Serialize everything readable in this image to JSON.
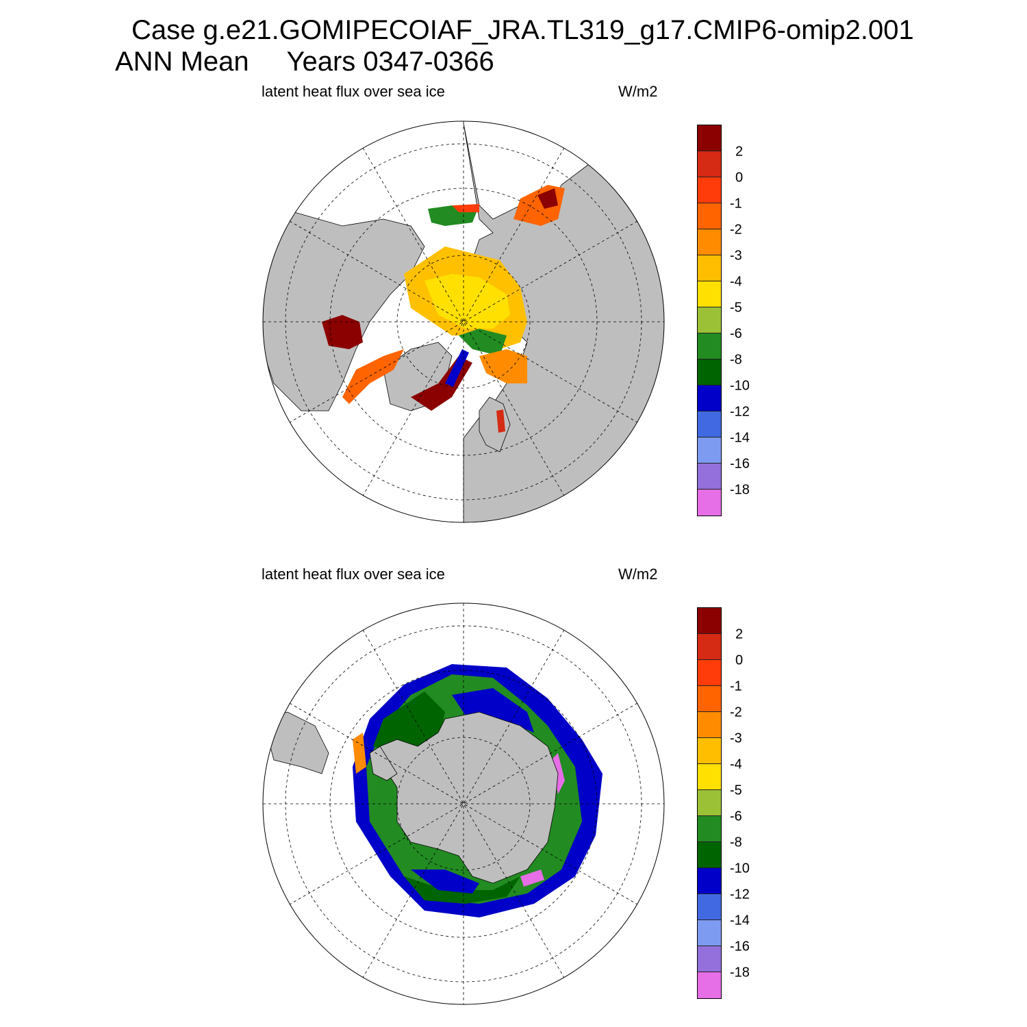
{
  "header": {
    "title": "Case g.e21.GOMIPECOIAF_JRA.TL319_g17.CMIP6-omip2.001",
    "subtitle": "ANN Mean     Years 0347-0366"
  },
  "panels": [
    {
      "hemisphere": "north",
      "label": "latent heat flux over sea ice",
      "units": "W/m2"
    },
    {
      "hemisphere": "south",
      "label": "latent heat flux over sea ice",
      "units": "W/m2"
    }
  ],
  "colorbar": {
    "colors": [
      "#8b0000",
      "#d52a14",
      "#ff3c0a",
      "#ff6400",
      "#ff8c00",
      "#ffbe00",
      "#ffe000",
      "#9bc136",
      "#228b22",
      "#006400",
      "#0000c8",
      "#4169e1",
      "#7d9bf0",
      "#9370db",
      "#e66ee6"
    ],
    "tick_labels": [
      "2",
      "0",
      "-1",
      "-2",
      "-3",
      "-4",
      "-5",
      "-6",
      "-8",
      "-10",
      "-12",
      "-14",
      "-16",
      "-18"
    ]
  },
  "map_style": {
    "land_color": "#bebebe",
    "ocean_color": "#ffffff",
    "grid_style": "dashed"
  }
}
